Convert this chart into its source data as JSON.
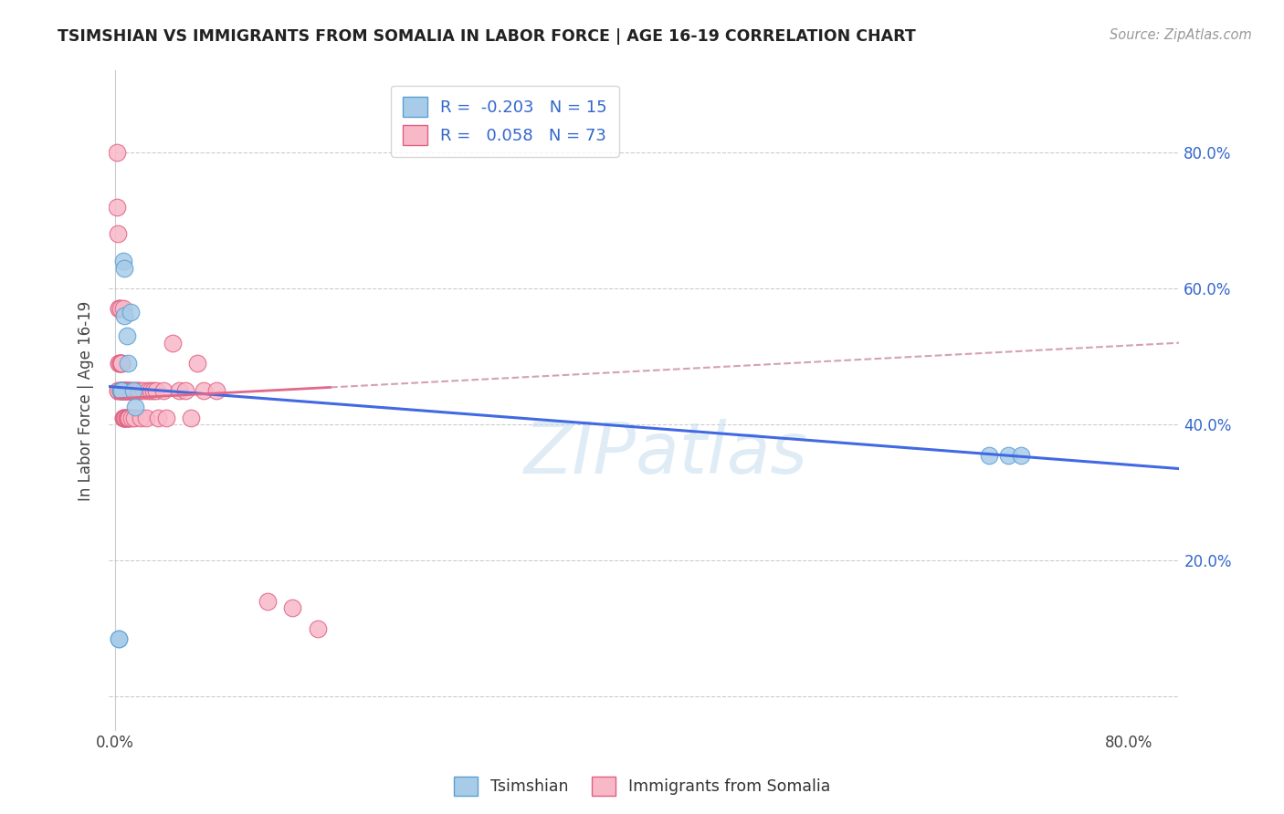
{
  "title": "TSIMSHIAN VS IMMIGRANTS FROM SOMALIA IN LABOR FORCE | AGE 16-19 CORRELATION CHART",
  "source": "Source: ZipAtlas.com",
  "ylabel": "In Labor Force | Age 16-19",
  "watermark": "ZIPatlas",
  "tsimshian_color": "#a8cce8",
  "tsimshian_edge": "#5a9fd4",
  "somalia_color": "#f9b8c8",
  "somalia_edge": "#e06080",
  "tsimshian_R": -0.203,
  "tsimshian_N": 15,
  "somalia_R": 0.058,
  "somalia_N": 73,
  "tsimshian_line_color": "#4169e1",
  "somalia_line_color": "#e06888",
  "dashed_line_color": "#d4a0b8",
  "xlim": [
    -0.005,
    0.84
  ],
  "ylim": [
    -0.05,
    0.92
  ],
  "background_color": "#ffffff",
  "grid_color": "#cccccc",
  "tsimshian_x": [
    0.003,
    0.003,
    0.004,
    0.005,
    0.006,
    0.007,
    0.007,
    0.009,
    0.01,
    0.012,
    0.014,
    0.016,
    0.69,
    0.705,
    0.715
  ],
  "tsimshian_y": [
    0.085,
    0.085,
    0.45,
    0.45,
    0.64,
    0.63,
    0.56,
    0.53,
    0.49,
    0.565,
    0.45,
    0.425,
    0.355,
    0.355,
    0.355
  ],
  "somalia_x": [
    0.001,
    0.001,
    0.002,
    0.002,
    0.002,
    0.003,
    0.003,
    0.003,
    0.003,
    0.004,
    0.004,
    0.004,
    0.004,
    0.004,
    0.005,
    0.005,
    0.005,
    0.005,
    0.005,
    0.005,
    0.006,
    0.006,
    0.006,
    0.006,
    0.006,
    0.007,
    0.007,
    0.007,
    0.007,
    0.007,
    0.008,
    0.008,
    0.008,
    0.008,
    0.009,
    0.009,
    0.009,
    0.01,
    0.01,
    0.01,
    0.01,
    0.01,
    0.011,
    0.011,
    0.012,
    0.012,
    0.013,
    0.014,
    0.015,
    0.016,
    0.017,
    0.018,
    0.019,
    0.02,
    0.022,
    0.024,
    0.026,
    0.028,
    0.03,
    0.032,
    0.034,
    0.038,
    0.04,
    0.045,
    0.05,
    0.055,
    0.06,
    0.065,
    0.07,
    0.08,
    0.12,
    0.14,
    0.16
  ],
  "somalia_y": [
    0.8,
    0.72,
    0.68,
    0.45,
    0.45,
    0.57,
    0.57,
    0.49,
    0.49,
    0.57,
    0.49,
    0.49,
    0.45,
    0.45,
    0.49,
    0.49,
    0.45,
    0.45,
    0.45,
    0.45,
    0.41,
    0.45,
    0.41,
    0.45,
    0.57,
    0.41,
    0.45,
    0.41,
    0.45,
    0.45,
    0.41,
    0.45,
    0.45,
    0.45,
    0.41,
    0.45,
    0.41,
    0.41,
    0.45,
    0.45,
    0.41,
    0.45,
    0.45,
    0.41,
    0.45,
    0.45,
    0.41,
    0.45,
    0.41,
    0.45,
    0.45,
    0.45,
    0.45,
    0.41,
    0.45,
    0.41,
    0.45,
    0.45,
    0.45,
    0.45,
    0.41,
    0.45,
    0.41,
    0.52,
    0.45,
    0.45,
    0.41,
    0.49,
    0.45,
    0.45,
    0.14,
    0.13,
    0.1
  ]
}
